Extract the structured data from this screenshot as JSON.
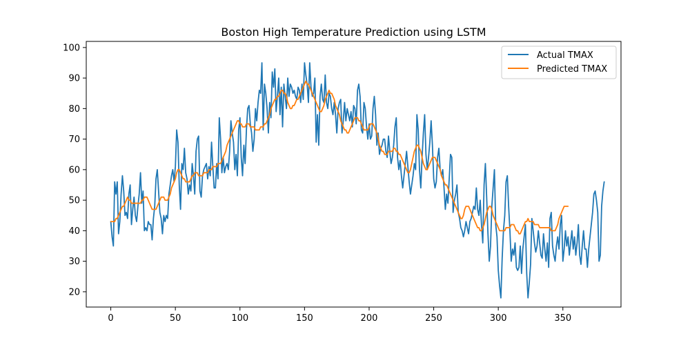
{
  "chart_data": {
    "type": "line",
    "title": "Boston High Temperature Prediction using LSTM",
    "xlabel": "",
    "ylabel": "",
    "xlim": [
      -19,
      395
    ],
    "ylim": [
      15,
      102
    ],
    "x_ticks": [
      0,
      50,
      100,
      150,
      200,
      250,
      300,
      350
    ],
    "y_ticks": [
      20,
      30,
      40,
      50,
      60,
      70,
      80,
      90,
      100
    ],
    "grid": false,
    "legend": "top-right",
    "series": [
      {
        "name": "Actual TMAX",
        "color": "#1f77b4",
        "x_start": 0,
        "values": [
          43,
          38,
          35,
          56,
          52,
          56,
          39,
          43,
          52,
          58,
          53,
          45,
          46,
          44,
          52,
          55,
          42,
          47,
          51,
          45,
          43,
          48,
          52,
          59,
          49,
          53,
          40,
          41,
          40,
          43,
          42,
          42,
          37,
          44,
          48,
          57,
          60,
          53,
          46,
          44,
          39,
          45,
          43,
          45,
          44,
          52,
          55,
          58,
          60,
          56,
          61,
          73,
          69,
          55,
          47,
          62,
          60,
          67,
          59,
          57,
          52,
          55,
          53,
          62,
          58,
          52,
          66,
          70,
          71,
          53,
          51,
          58,
          60,
          61,
          62,
          57,
          61,
          58,
          69,
          61,
          54,
          54,
          62,
          57,
          77,
          70,
          59,
          64,
          59,
          61,
          62,
          60,
          66,
          76,
          72,
          69,
          60,
          65,
          58,
          73,
          77,
          64,
          58,
          68,
          62,
          73,
          80,
          81,
          75,
          72,
          66,
          70,
          80,
          76,
          82,
          86,
          85,
          95,
          73,
          88,
          85,
          80,
          72,
          82,
          77,
          92,
          87,
          93,
          79,
          84,
          90,
          78,
          87,
          74,
          88,
          84,
          80,
          90,
          84,
          88,
          87,
          85,
          86,
          84,
          83,
          87,
          86,
          82,
          88,
          83,
          95,
          91,
          88,
          82,
          95,
          87,
          84,
          85,
          90,
          69,
          78,
          68,
          84,
          88,
          83,
          82,
          91,
          82,
          80,
          85,
          84,
          80,
          78,
          82,
          78,
          72,
          80,
          82,
          83,
          72,
          76,
          82,
          76,
          80,
          78,
          76,
          79,
          74,
          81,
          80,
          75,
          86,
          88,
          84,
          73,
          72,
          82,
          80,
          74,
          70,
          75,
          70,
          71,
          80,
          84,
          78,
          68,
          72,
          65,
          67,
          68,
          70,
          70,
          66,
          64,
          71,
          66,
          62,
          64,
          68,
          74,
          77,
          64,
          60,
          63,
          58,
          54,
          58,
          62,
          66,
          61,
          56,
          52,
          55,
          58,
          62,
          60,
          78,
          73,
          60,
          54,
          64,
          72,
          78,
          65,
          60,
          64,
          69,
          76,
          68,
          57,
          54,
          56,
          64,
          67,
          60,
          58,
          60,
          54,
          47,
          52,
          49,
          57,
          65,
          64,
          46,
          50,
          52,
          55,
          46,
          44,
          41,
          40,
          38,
          40,
          43,
          41,
          39,
          43,
          44,
          46,
          48,
          47,
          54,
          47,
          45,
          50,
          42,
          36,
          55,
          62,
          51,
          39,
          30,
          35,
          48,
          54,
          60,
          42,
          38,
          27,
          22,
          18,
          31,
          40,
          45,
          56,
          58,
          48,
          40,
          30,
          34,
          32,
          36,
          28,
          27,
          28,
          35,
          26,
          34,
          38,
          42,
          26,
          18,
          23,
          29,
          44,
          40,
          36,
          33,
          35,
          40,
          36,
          32,
          31,
          39,
          34,
          30,
          36,
          28,
          44,
          46,
          35,
          32,
          30,
          35,
          38,
          34,
          42,
          45,
          30,
          34,
          40,
          35,
          38,
          32,
          36,
          40,
          34,
          38,
          32,
          36,
          42,
          32,
          29,
          35,
          40,
          34,
          34,
          28,
          34,
          38,
          42,
          46,
          52,
          53,
          50,
          46,
          30,
          32,
          48,
          53,
          56
        ]
      },
      {
        "name": "Predicted TMAX",
        "color": "#ff7f0e",
        "x_start": 0,
        "values": [
          43,
          43,
          43,
          43,
          44,
          44,
          45,
          46,
          47,
          48,
          48,
          49,
          50,
          51,
          50,
          50,
          49,
          49,
          49,
          49,
          49,
          49,
          49,
          49,
          50,
          50,
          51,
          51,
          51,
          50,
          49,
          48,
          47,
          47,
          47,
          47,
          48,
          49,
          50,
          51,
          51,
          51,
          50,
          50,
          50,
          51,
          52,
          54,
          55,
          56,
          57,
          59,
          60,
          60,
          59,
          58,
          57,
          57,
          56,
          56,
          56,
          56,
          57,
          58,
          58,
          59,
          59,
          59,
          58,
          58,
          58,
          58,
          59,
          59,
          59,
          59,
          60,
          60,
          60,
          61,
          61,
          61,
          61,
          62,
          62,
          62,
          63,
          64,
          65,
          66,
          68,
          69,
          70,
          71,
          72,
          73,
          74,
          75,
          76,
          76,
          75,
          75,
          74,
          74,
          74,
          75,
          75,
          75,
          74,
          74,
          74,
          74,
          73,
          73,
          73,
          73,
          74,
          74,
          74,
          75,
          75,
          76,
          77,
          78,
          80,
          81,
          82,
          83,
          83,
          84,
          84,
          85,
          86,
          86,
          85,
          85,
          84,
          82,
          81,
          80,
          80,
          81,
          81,
          82,
          83,
          83,
          84,
          85,
          86,
          87,
          88,
          89,
          88,
          88,
          87,
          86,
          85,
          84,
          83,
          82,
          81,
          80,
          79,
          79,
          80,
          81,
          83,
          84,
          85,
          86,
          85,
          85,
          84,
          83,
          81,
          80,
          79,
          78,
          76,
          75,
          74,
          73,
          73,
          72,
          72,
          73,
          74,
          75,
          76,
          77,
          77,
          77,
          76,
          76,
          75,
          74,
          73,
          73,
          73,
          73,
          74,
          75,
          75,
          75,
          74,
          73,
          72,
          70,
          68,
          67,
          66,
          66,
          65,
          65,
          65,
          66,
          66,
          66,
          66,
          67,
          67,
          66,
          66,
          65,
          65,
          64,
          63,
          62,
          61,
          60,
          59,
          59,
          60,
          62,
          64,
          66,
          67,
          68,
          68,
          67,
          66,
          64,
          62,
          61,
          60,
          60,
          61,
          62,
          63,
          64,
          64,
          64,
          63,
          62,
          61,
          60,
          58,
          57,
          56,
          55,
          55,
          54,
          53,
          52,
          51,
          50,
          49,
          48,
          47,
          46,
          45,
          44,
          44,
          45,
          47,
          48,
          48,
          48,
          47,
          46,
          45,
          44,
          43,
          42,
          41,
          41,
          40,
          40,
          41,
          42,
          44,
          46,
          47,
          48,
          48,
          47,
          45,
          44,
          43,
          42,
          41,
          40,
          40,
          40,
          40,
          40,
          41,
          41,
          41,
          41,
          42,
          42,
          42,
          41,
          40,
          40,
          39,
          39,
          40,
          41,
          42,
          43,
          43,
          44,
          43,
          43,
          43,
          43,
          42,
          42,
          42,
          42,
          41,
          41,
          41,
          41,
          41,
          41,
          41,
          41,
          41,
          40,
          40,
          40,
          40,
          41,
          42,
          44,
          45,
          46,
          47,
          48,
          48,
          48,
          48
        ]
      }
    ]
  }
}
